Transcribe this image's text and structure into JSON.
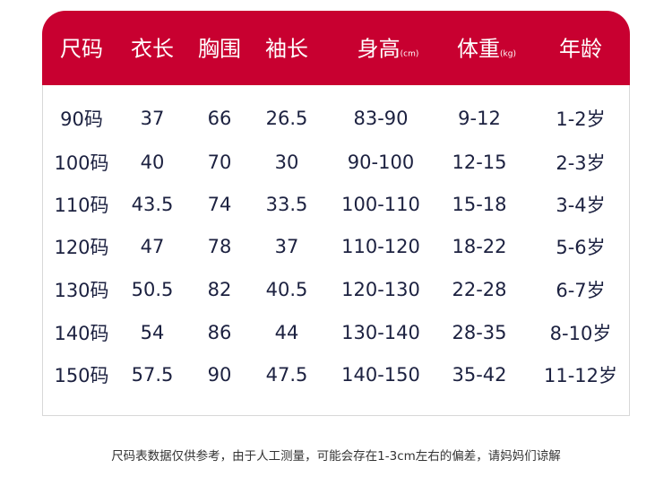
{
  "header": [
    {
      "label": "尺码",
      "unit": ""
    },
    {
      "label": "衣长",
      "unit": ""
    },
    {
      "label": "胸围",
      "unit": ""
    },
    {
      "label": "袖长",
      "unit": ""
    },
    {
      "label": "身高",
      "unit": "(cm)"
    },
    {
      "label": "体重",
      "unit": "(kg)"
    },
    {
      "label": "年龄",
      "unit": ""
    }
  ],
  "rows": [
    [
      "90码",
      "37",
      "66",
      "26.5",
      "83-90",
      "9-12",
      "1-2岁"
    ],
    [
      "100码",
      "40",
      "70",
      "30",
      "90-100",
      "12-15",
      "2-3岁"
    ],
    [
      "110码",
      "43.5",
      "74",
      "33.5",
      "100-110",
      "15-18",
      "3-4岁"
    ],
    [
      "120码",
      "47",
      "78",
      "37",
      "110-120",
      "18-22",
      "5-6岁"
    ],
    [
      "130码",
      "50.5",
      "82",
      "40.5",
      "120-130",
      "22-28",
      "6-7岁"
    ],
    [
      "140码",
      "54",
      "86",
      "44",
      "130-140",
      "28-35",
      "8-10岁"
    ],
    [
      "150码",
      "57.5",
      "90",
      "47.5",
      "140-150",
      "35-42",
      "11-12岁"
    ]
  ],
  "note": "尺码表数据仅供参考，由于人工测量，可能会存在1-3cm左右的偏差，请妈妈们谅解",
  "colors": {
    "header_bg": "#c80030",
    "text": "#1c2140"
  }
}
